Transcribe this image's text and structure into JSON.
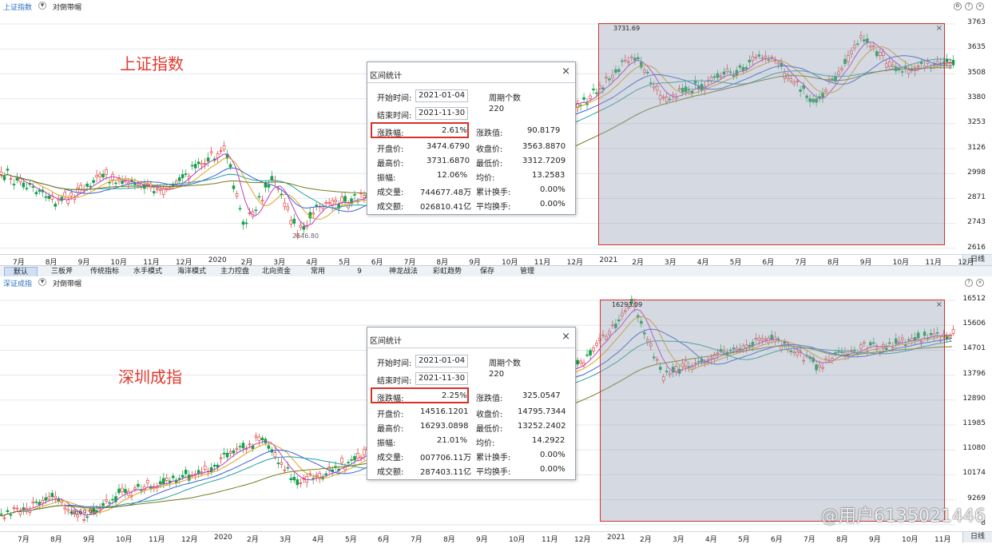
{
  "panel1": {
    "index_name": "上证指数",
    "scale_label": "对倒带帽",
    "big_label": "上证指数",
    "y_ticks": [
      "3763",
      "3635",
      "3508",
      "3380",
      "3253",
      "3126",
      "2998",
      "2871",
      "2743",
      "2616"
    ],
    "x_ticks": [
      "7月",
      "8月",
      "9月",
      "10月",
      "11月",
      "12月",
      "2020",
      "2月",
      "3月",
      "4月",
      "5月",
      "6月",
      "7月",
      "8月",
      "9月",
      "10月",
      "11月",
      "12月",
      "2021",
      "2月",
      "3月",
      "4月",
      "5月",
      "6月",
      "7月",
      "8月",
      "9月",
      "10月",
      "11月",
      "12月"
    ],
    "day_line": "日线",
    "peak_label": "3731.69",
    "low_label": "2646.80",
    "dialog": {
      "title": "区间统计",
      "close": "×",
      "start_label": "开始时间:",
      "start_value": "2021-01-04",
      "end_label": "结束时间:",
      "end_value": "2021-11-30",
      "period_label": "周期个数",
      "period_value": "220",
      "change_pct_label": "涨跌幅:",
      "change_pct_value": "2.61%",
      "change_val_label": "涨跌值:",
      "change_val_value": "90.8179",
      "open_label": "开盘价:",
      "open_value": "3474.6790",
      "close_label": "收盘价:",
      "close_value": "3563.8870",
      "high_label": "最高价:",
      "high_value": "3731.6870",
      "low_label": "最低价:",
      "low_value": "3312.7209",
      "amp_label": "振幅:",
      "amp_value": "12.06%",
      "avg_label": "均价:",
      "avg_value": "13.2583",
      "vol_label": "成交量:",
      "vol_value": "744677.48万",
      "turn1_label": "累计换手:",
      "turn1_value": "0.00%",
      "amt_label": "成交额:",
      "amt_value": "026810.41亿",
      "turn2_label": "平均换手:",
      "turn2_value": "0.00%"
    }
  },
  "panel2": {
    "index_name": "深证成指",
    "scale_label": "对倒带帽",
    "big_label": "深圳成指",
    "y_ticks": [
      "16512",
      "15606",
      "14701",
      "13796",
      "12890",
      "11985",
      "11080",
      "10174",
      "9269",
      "8"
    ],
    "x_ticks": [
      "7月",
      "8月",
      "9月",
      "10月",
      "11月",
      "12月",
      "2020",
      "2月",
      "3月",
      "4月",
      "5月",
      "6月",
      "7月",
      "8月",
      "9月",
      "10月",
      "11月",
      "12月",
      "2021",
      "2月",
      "3月",
      "4月",
      "5月",
      "6月",
      "7月",
      "8月",
      "9月",
      "10月",
      "11月"
    ],
    "day_line": "日线",
    "peak_label": "16293.09",
    "low_label": "8669.90",
    "dialog": {
      "title": "区间统计",
      "close": "×",
      "start_label": "开始时间:",
      "start_value": "2021-01-04",
      "end_label": "结束时间:",
      "end_value": "2021-11-30",
      "period_label": "周期个数",
      "period_value": "220",
      "change_pct_label": "涨跌幅:",
      "change_pct_value": "2.25%",
      "change_val_label": "涨跌值:",
      "change_val_value": "325.0547",
      "open_label": "开盘价:",
      "open_value": "14516.1201",
      "close_label": "收盘价:",
      "close_value": "14795.7344",
      "high_label": "最高价:",
      "high_value": "16293.0898",
      "low_label": "最低价:",
      "low_value": "13252.2402",
      "amp_label": "振幅:",
      "amp_value": "21.01%",
      "avg_label": "均价:",
      "avg_value": "14.2922",
      "vol_label": "成交量:",
      "vol_value": "007706.11万",
      "turn1_label": "累计换手:",
      "turn1_value": "0.00%",
      "amt_label": "成交额:",
      "amt_value": "287403.11亿",
      "turn2_label": "平均换手:",
      "turn2_value": "0.00%"
    }
  },
  "tabs": [
    "默认",
    "三板斧",
    "传统指标",
    "水手模式",
    "海洋模式",
    "主力控盘",
    "北向资金",
    "常用",
    "9",
    "神龙战法",
    "彩虹趋势",
    "保存",
    "管理"
  ],
  "watermark": "@用户6135021446",
  "colors": {
    "up": "#e0302a",
    "down": "#14a04a",
    "ma1": "#3b63d6",
    "ma2": "#c23bbd",
    "ma3": "#e2a21e",
    "ma4": "#7a7a1a",
    "ma5": "#2aa0a0",
    "selection_border": "#d9302a"
  }
}
